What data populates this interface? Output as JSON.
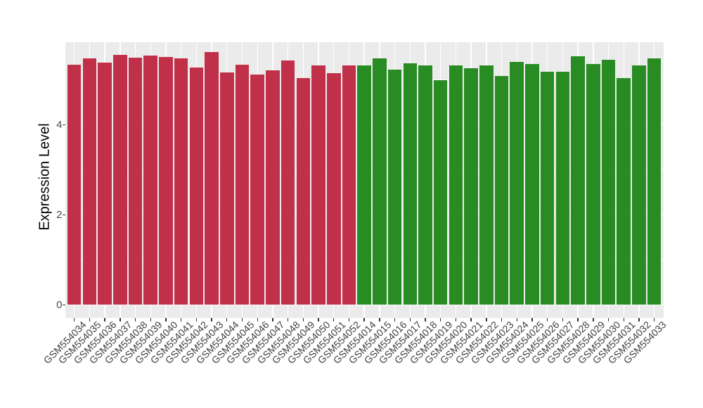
{
  "chart_data": {
    "type": "bar",
    "title": "",
    "ylabel": "Expression Level",
    "xlabel": "",
    "ylim": [
      0,
      5.83
    ],
    "yticks_major": [
      0,
      2,
      4
    ],
    "yticks_minor": [
      1,
      3,
      5
    ],
    "grid": true,
    "legend": false,
    "panel_bg": "#EBEBEB",
    "grid_color": "#FFFFFF",
    "axis_text_color": "#4D4D4D",
    "tick_color": "#333333",
    "group_colors": {
      "group1": "#C13049",
      "group2": "#288C23"
    },
    "bars": [
      {
        "label": "GSM554034",
        "value": 5.34,
        "group": "group1"
      },
      {
        "label": "GSM554035",
        "value": 5.47,
        "group": "group1"
      },
      {
        "label": "GSM554036",
        "value": 5.38,
        "group": "group1"
      },
      {
        "label": "GSM554037",
        "value": 5.55,
        "group": "group1"
      },
      {
        "label": "GSM554038",
        "value": 5.49,
        "group": "group1"
      },
      {
        "label": "GSM554039",
        "value": 5.54,
        "group": "group1"
      },
      {
        "label": "GSM554040",
        "value": 5.51,
        "group": "group1"
      },
      {
        "label": "GSM554041",
        "value": 5.48,
        "group": "group1"
      },
      {
        "label": "GSM554042",
        "value": 5.27,
        "group": "group1"
      },
      {
        "label": "GSM554043",
        "value": 5.61,
        "group": "group1"
      },
      {
        "label": "GSM554044",
        "value": 5.16,
        "group": "group1"
      },
      {
        "label": "GSM554045",
        "value": 5.34,
        "group": "group1"
      },
      {
        "label": "GSM554046",
        "value": 5.11,
        "group": "group1"
      },
      {
        "label": "GSM554047",
        "value": 5.21,
        "group": "group1"
      },
      {
        "label": "GSM554048",
        "value": 5.42,
        "group": "group1"
      },
      {
        "label": "GSM554049",
        "value": 5.04,
        "group": "group1"
      },
      {
        "label": "GSM554050",
        "value": 5.31,
        "group": "group1"
      },
      {
        "label": "GSM554051",
        "value": 5.14,
        "group": "group1"
      },
      {
        "label": "GSM554052",
        "value": 5.32,
        "group": "group1"
      },
      {
        "label": "GSM554014",
        "value": 5.31,
        "group": "group2"
      },
      {
        "label": "GSM554015",
        "value": 5.47,
        "group": "group2"
      },
      {
        "label": "GSM554016",
        "value": 5.23,
        "group": "group2"
      },
      {
        "label": "GSM554017",
        "value": 5.37,
        "group": "group2"
      },
      {
        "label": "GSM554018",
        "value": 5.32,
        "group": "group2"
      },
      {
        "label": "GSM554019",
        "value": 4.99,
        "group": "group2"
      },
      {
        "label": "GSM554020",
        "value": 5.31,
        "group": "group2"
      },
      {
        "label": "GSM554021",
        "value": 5.26,
        "group": "group2"
      },
      {
        "label": "GSM554022",
        "value": 5.31,
        "group": "group2"
      },
      {
        "label": "GSM554023",
        "value": 5.09,
        "group": "group2"
      },
      {
        "label": "GSM554024",
        "value": 5.4,
        "group": "group2"
      },
      {
        "label": "GSM554025",
        "value": 5.35,
        "group": "group2"
      },
      {
        "label": "GSM554026",
        "value": 5.17,
        "group": "group2"
      },
      {
        "label": "GSM554027",
        "value": 5.18,
        "group": "group2"
      },
      {
        "label": "GSM554028",
        "value": 5.52,
        "group": "group2"
      },
      {
        "label": "GSM554029",
        "value": 5.35,
        "group": "group2"
      },
      {
        "label": "GSM554030",
        "value": 5.45,
        "group": "group2"
      },
      {
        "label": "GSM554031",
        "value": 5.04,
        "group": "group2"
      },
      {
        "label": "GSM554032",
        "value": 5.32,
        "group": "group2"
      },
      {
        "label": "GSM554033",
        "value": 5.48,
        "group": "group2"
      }
    ]
  }
}
